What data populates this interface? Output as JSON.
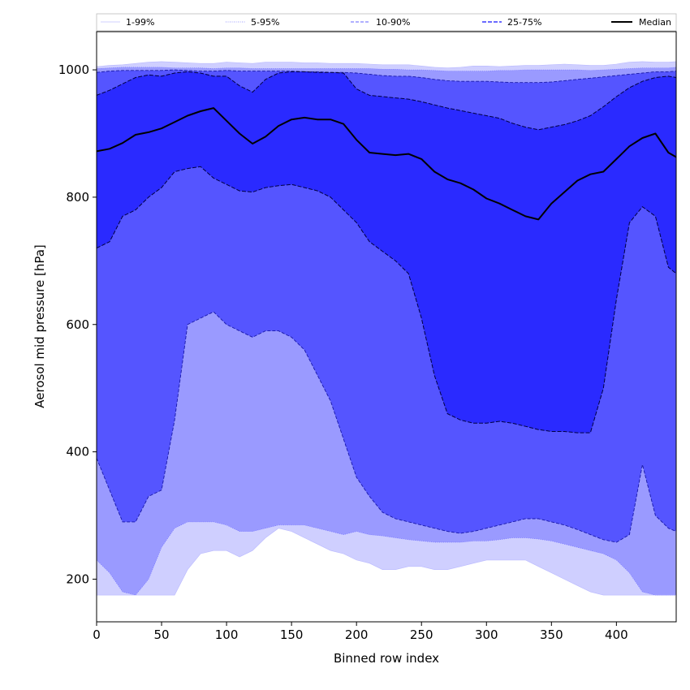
{
  "chart_data": {
    "type": "area",
    "title": "",
    "xlabel": "Binned row index",
    "ylabel": "Aerosol mid pressure [hPa]",
    "xlim": [
      0,
      446
    ],
    "ylim": [
      133,
      1060
    ],
    "xticks": [
      "0",
      "50",
      "100",
      "150",
      "200",
      "250",
      "300",
      "350",
      "400"
    ],
    "yticks": [
      "200",
      "400",
      "600",
      "800",
      "1000"
    ],
    "legend": {
      "placement": "top, spanning full width",
      "entries": [
        "1-99%",
        "5-95%",
        "10-90%",
        "25-75%",
        "Median"
      ]
    },
    "colors": {
      "band_1_99": "#cfcfff",
      "band_5_95": "#9a9aff",
      "band_10_90": "#5555ff",
      "band_25_75": "#2a2aff",
      "median": "#000000"
    },
    "x": [
      0,
      10,
      20,
      30,
      40,
      50,
      60,
      70,
      80,
      90,
      100,
      110,
      120,
      130,
      140,
      150,
      160,
      170,
      180,
      190,
      200,
      210,
      220,
      230,
      240,
      250,
      260,
      270,
      280,
      290,
      300,
      310,
      320,
      330,
      340,
      350,
      360,
      370,
      380,
      390,
      400,
      410,
      420,
      430,
      440,
      446
    ],
    "series": [
      {
        "name": "1-99%",
        "lower": [
          175,
          175,
          175,
          175,
          175,
          175,
          175,
          215,
          240,
          245,
          245,
          235,
          245,
          265,
          280,
          275,
          265,
          255,
          245,
          240,
          230,
          225,
          215,
          215,
          220,
          220,
          215,
          215,
          220,
          225,
          230,
          230,
          230,
          230,
          220,
          210,
          200,
          190,
          180,
          175,
          175,
          175,
          175,
          175,
          175,
          175
        ],
        "upper": [
          1005,
          1007,
          1008,
          1010,
          1012,
          1013,
          1012,
          1011,
          1010,
          1010,
          1012,
          1011,
          1010,
          1012,
          1012,
          1012,
          1011,
          1011,
          1010,
          1010,
          1010,
          1009,
          1008,
          1008,
          1008,
          1006,
          1004,
          1003,
          1004,
          1006,
          1006,
          1005,
          1006,
          1007,
          1007,
          1008,
          1009,
          1008,
          1007,
          1007,
          1009,
          1012,
          1013,
          1012,
          1012,
          1013
        ]
      },
      {
        "name": "5-95%",
        "lower": [
          230,
          210,
          180,
          175,
          200,
          250,
          280,
          290,
          290,
          290,
          285,
          275,
          275,
          280,
          285,
          285,
          285,
          280,
          275,
          270,
          275,
          270,
          268,
          265,
          262,
          260,
          258,
          258,
          258,
          260,
          260,
          262,
          265,
          265,
          263,
          260,
          255,
          250,
          245,
          240,
          230,
          210,
          180,
          175,
          175,
          175
        ],
        "upper": [
          1002,
          1003,
          1004,
          1004,
          1004,
          1004,
          1003,
          1003,
          1003,
          1002,
          1003,
          1003,
          1002,
          1002,
          1002,
          1002,
          1002,
          1002,
          1002,
          1002,
          1002,
          1002,
          1001,
          1001,
          1000,
          1000,
          999,
          998,
          998,
          998,
          998,
          999,
          999,
          1000,
          1000,
          1000,
          1000,
          1000,
          999,
          1000,
          1001,
          1002,
          1003,
          1003,
          1003,
          1004
        ]
      },
      {
        "name": "10-90%",
        "lower": [
          390,
          340,
          290,
          290,
          330,
          340,
          450,
          600,
          610,
          620,
          600,
          590,
          580,
          590,
          590,
          580,
          560,
          520,
          480,
          420,
          360,
          330,
          305,
          295,
          290,
          285,
          280,
          275,
          272,
          275,
          280,
          285,
          290,
          295,
          295,
          290,
          285,
          278,
          270,
          262,
          258,
          270,
          380,
          300,
          280,
          275
        ],
        "upper": [
          996,
          998,
          999,
          999,
          999,
          999,
          1000,
          999,
          998,
          998,
          999,
          998,
          998,
          998,
          998,
          998,
          997,
          997,
          996,
          996,
          995,
          993,
          991,
          990,
          990,
          988,
          985,
          983,
          982,
          982,
          982,
          981,
          980,
          980,
          980,
          981,
          983,
          985,
          987,
          989,
          991,
          993,
          995,
          997,
          997,
          998
        ]
      },
      {
        "name": "25-75%",
        "lower": [
          720,
          730,
          770,
          780,
          800,
          815,
          840,
          845,
          848,
          830,
          820,
          810,
          808,
          815,
          818,
          820,
          815,
          810,
          800,
          780,
          760,
          730,
          715,
          700,
          680,
          610,
          520,
          460,
          450,
          445,
          445,
          448,
          445,
          440,
          435,
          432,
          432,
          430,
          430,
          500,
          640,
          760,
          785,
          770,
          690,
          680
        ],
        "upper": [
          960,
          968,
          978,
          988,
          992,
          990,
          995,
          997,
          995,
          990,
          990,
          975,
          965,
          985,
          995,
          997,
          997,
          996,
          996,
          995,
          970,
          960,
          958,
          956,
          954,
          950,
          945,
          940,
          936,
          932,
          928,
          924,
          916,
          910,
          906,
          910,
          914,
          920,
          928,
          942,
          958,
          972,
          982,
          988,
          990,
          988
        ]
      },
      {
        "name": "Median",
        "values": [
          872,
          876,
          885,
          898,
          902,
          908,
          918,
          928,
          935,
          940,
          920,
          900,
          884,
          895,
          912,
          922,
          925,
          922,
          922,
          915,
          890,
          870,
          868,
          866,
          868,
          860,
          840,
          828,
          822,
          812,
          798,
          790,
          780,
          770,
          765,
          790,
          808,
          826,
          836,
          840,
          860,
          880,
          893,
          900,
          870,
          863
        ]
      }
    ]
  }
}
